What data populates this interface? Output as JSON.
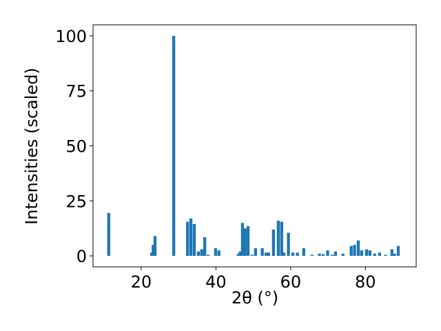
{
  "chart_data": {
    "type": "bar",
    "xlabel": "2θ (°)",
    "ylabel": "Intensities (scaled)",
    "color": "#1f77b4",
    "x": [
      11.3,
      22.8,
      23.2,
      23.7,
      28.7,
      32.4,
      33.3,
      34.2,
      35.3,
      36.2,
      37.0,
      37.9,
      39.9,
      40.8,
      46.0,
      46.5,
      47.1,
      47.8,
      48.6,
      49.7,
      50.6,
      52.4,
      53.4,
      54.1,
      55.4,
      56.7,
      57.6,
      58.2,
      59.4,
      60.6,
      61.8,
      63.5,
      65.7,
      67.7,
      68.7,
      69.9,
      71.1,
      72.0,
      74.0,
      76.2,
      77.1,
      78.1,
      79.0,
      80.3,
      81.2,
      82.5,
      83.8,
      85.4,
      87.1,
      87.8,
      88.8
    ],
    "values": [
      19.5,
      1.5,
      5,
      9,
      100,
      15.5,
      17,
      14.5,
      2,
      3,
      8.5,
      0.5,
      3.5,
      2.5,
      1,
      2,
      15,
      12.5,
      13.5,
      0.5,
      3.5,
      3.5,
      1.5,
      1.5,
      12,
      16,
      15.5,
      1.5,
      10.5,
      1.5,
      1.5,
      3.5,
      0.5,
      1,
      0.8,
      2.5,
      0.5,
      2,
      1,
      4.5,
      5,
      7,
      2.5,
      3,
      2.5,
      1,
      1.5,
      0.5,
      3,
      1,
      4.5
    ],
    "xlim": [
      7.1,
      93.6
    ],
    "ylim": [
      -5,
      105
    ],
    "xticks": [
      20,
      40,
      60,
      80
    ],
    "yticks": [
      0,
      25,
      50,
      75,
      100
    ]
  }
}
